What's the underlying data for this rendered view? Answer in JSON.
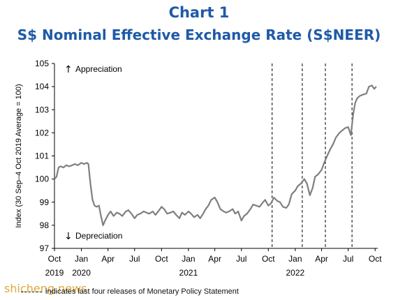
{
  "header": {
    "chart_number": "Chart 1",
    "title": "S$ Nominal Effective Exchange Rate (S$NEER)"
  },
  "footer": {
    "legend_note": "indicates last four releases of Monetary Policy Statement",
    "watermark": "shicheng.news"
  },
  "colors": {
    "title": "#1f5aa6",
    "series": "#7f7f7f",
    "axis": "#000000",
    "watermark": "#d9a12a"
  },
  "chart_data": {
    "type": "line",
    "title": "S$ Nominal Effective Exchange Rate (S$NEER)",
    "ylabel": "Index (30 Sep–4 Oct 2019 Average = 100)",
    "xlabel": "",
    "ylim": [
      97,
      105
    ],
    "yticks": [
      97,
      98,
      99,
      100,
      101,
      102,
      103,
      104,
      105
    ],
    "xlim": [
      "2019-10-01",
      "2022-10-10"
    ],
    "xticks": [
      {
        "date": "2019-10-01",
        "label": "Oct",
        "year": "2019"
      },
      {
        "date": "2020-01-01",
        "label": "Jan",
        "year": "2020"
      },
      {
        "date": "2020-04-01",
        "label": "Apr",
        "year": ""
      },
      {
        "date": "2020-07-01",
        "label": "Jul",
        "year": ""
      },
      {
        "date": "2020-10-01",
        "label": "Oct",
        "year": ""
      },
      {
        "date": "2021-01-01",
        "label": "Jan",
        "year": "2021"
      },
      {
        "date": "2021-04-01",
        "label": "Apr",
        "year": ""
      },
      {
        "date": "2021-07-01",
        "label": "Jul",
        "year": ""
      },
      {
        "date": "2021-10-01",
        "label": "Oct",
        "year": ""
      },
      {
        "date": "2022-01-01",
        "label": "Jan",
        "year": "2022"
      },
      {
        "date": "2022-04-01",
        "label": "Apr",
        "year": ""
      },
      {
        "date": "2022-07-01",
        "label": "Jul",
        "year": ""
      },
      {
        "date": "2022-10-01",
        "label": "Oct",
        "year": ""
      }
    ],
    "annotations": [
      {
        "text": "Appreciation",
        "arrow": "up"
      },
      {
        "text": "Depreciation",
        "arrow": "down"
      }
    ],
    "mps_release_dates": [
      "2021-10-14",
      "2022-01-25",
      "2022-04-14",
      "2022-07-14"
    ],
    "grid": false,
    "series": [
      {
        "points": [
          [
            "2019-10-01",
            100.0
          ],
          [
            "2019-10-08",
            100.1
          ],
          [
            "2019-10-15",
            100.5
          ],
          [
            "2019-10-22",
            100.55
          ],
          [
            "2019-11-01",
            100.5
          ],
          [
            "2019-11-10",
            100.6
          ],
          [
            "2019-11-20",
            100.55
          ],
          [
            "2019-12-01",
            100.6
          ],
          [
            "2019-12-10",
            100.65
          ],
          [
            "2019-12-20",
            100.6
          ],
          [
            "2020-01-01",
            100.7
          ],
          [
            "2020-01-10",
            100.65
          ],
          [
            "2020-01-20",
            100.7
          ],
          [
            "2020-01-25",
            100.65
          ],
          [
            "2020-02-01",
            99.8
          ],
          [
            "2020-02-08",
            99.1
          ],
          [
            "2020-02-15",
            98.85
          ],
          [
            "2020-02-22",
            98.8
          ],
          [
            "2020-03-01",
            98.85
          ],
          [
            "2020-03-08",
            98.4
          ],
          [
            "2020-03-15",
            98.0
          ],
          [
            "2020-03-22",
            98.2
          ],
          [
            "2020-04-01",
            98.45
          ],
          [
            "2020-04-10",
            98.6
          ],
          [
            "2020-04-20",
            98.4
          ],
          [
            "2020-05-01",
            98.55
          ],
          [
            "2020-05-10",
            98.5
          ],
          [
            "2020-05-20",
            98.4
          ],
          [
            "2020-06-01",
            98.6
          ],
          [
            "2020-06-10",
            98.65
          ],
          [
            "2020-06-20",
            98.5
          ],
          [
            "2020-07-01",
            98.3
          ],
          [
            "2020-07-10",
            98.45
          ],
          [
            "2020-07-20",
            98.5
          ],
          [
            "2020-08-01",
            98.6
          ],
          [
            "2020-08-10",
            98.55
          ],
          [
            "2020-08-20",
            98.5
          ],
          [
            "2020-09-01",
            98.6
          ],
          [
            "2020-09-10",
            98.45
          ],
          [
            "2020-09-20",
            98.6
          ],
          [
            "2020-10-01",
            98.8
          ],
          [
            "2020-10-10",
            98.7
          ],
          [
            "2020-10-20",
            98.5
          ],
          [
            "2020-11-01",
            98.55
          ],
          [
            "2020-11-10",
            98.6
          ],
          [
            "2020-11-20",
            98.45
          ],
          [
            "2020-12-01",
            98.3
          ],
          [
            "2020-12-10",
            98.55
          ],
          [
            "2020-12-20",
            98.45
          ],
          [
            "2021-01-01",
            98.6
          ],
          [
            "2021-01-10",
            98.5
          ],
          [
            "2021-01-20",
            98.35
          ],
          [
            "2021-02-01",
            98.45
          ],
          [
            "2021-02-10",
            98.3
          ],
          [
            "2021-02-20",
            98.5
          ],
          [
            "2021-03-01",
            98.7
          ],
          [
            "2021-03-10",
            98.85
          ],
          [
            "2021-03-20",
            99.1
          ],
          [
            "2021-04-01",
            99.2
          ],
          [
            "2021-04-10",
            99.0
          ],
          [
            "2021-04-20",
            98.7
          ],
          [
            "2021-05-01",
            98.6
          ],
          [
            "2021-05-10",
            98.55
          ],
          [
            "2021-05-20",
            98.6
          ],
          [
            "2021-06-01",
            98.7
          ],
          [
            "2021-06-10",
            98.5
          ],
          [
            "2021-06-20",
            98.6
          ],
          [
            "2021-07-01",
            98.2
          ],
          [
            "2021-07-10",
            98.4
          ],
          [
            "2021-07-20",
            98.5
          ],
          [
            "2021-08-01",
            98.7
          ],
          [
            "2021-08-10",
            98.9
          ],
          [
            "2021-08-20",
            98.85
          ],
          [
            "2021-09-01",
            98.8
          ],
          [
            "2021-09-10",
            98.95
          ],
          [
            "2021-09-20",
            99.1
          ],
          [
            "2021-10-01",
            98.85
          ],
          [
            "2021-10-10",
            98.95
          ],
          [
            "2021-10-20",
            99.2
          ],
          [
            "2021-11-01",
            99.05
          ],
          [
            "2021-11-10",
            99.0
          ],
          [
            "2021-11-20",
            98.8
          ],
          [
            "2021-12-01",
            98.75
          ],
          [
            "2021-12-10",
            98.9
          ],
          [
            "2021-12-20",
            99.35
          ],
          [
            "2022-01-01",
            99.5
          ],
          [
            "2022-01-10",
            99.7
          ],
          [
            "2022-01-20",
            99.8
          ],
          [
            "2022-02-01",
            100.0
          ],
          [
            "2022-02-10",
            99.8
          ],
          [
            "2022-02-20",
            99.3
          ],
          [
            "2022-03-01",
            99.6
          ],
          [
            "2022-03-10",
            100.1
          ],
          [
            "2022-03-20",
            100.2
          ],
          [
            "2022-04-01",
            100.4
          ],
          [
            "2022-04-10",
            100.7
          ],
          [
            "2022-04-20",
            101.0
          ],
          [
            "2022-05-01",
            101.3
          ],
          [
            "2022-05-10",
            101.5
          ],
          [
            "2022-05-20",
            101.8
          ],
          [
            "2022-06-01",
            102.0
          ],
          [
            "2022-06-10",
            102.1
          ],
          [
            "2022-06-20",
            102.2
          ],
          [
            "2022-07-01",
            102.25
          ],
          [
            "2022-07-10",
            101.9
          ],
          [
            "2022-07-18",
            102.8
          ],
          [
            "2022-07-25",
            103.3
          ],
          [
            "2022-08-01",
            103.5
          ],
          [
            "2022-08-10",
            103.6
          ],
          [
            "2022-08-20",
            103.65
          ],
          [
            "2022-09-01",
            103.7
          ],
          [
            "2022-09-10",
            104.0
          ],
          [
            "2022-09-20",
            104.05
          ],
          [
            "2022-09-28",
            103.9
          ],
          [
            "2022-10-05",
            104.0
          ]
        ]
      }
    ]
  }
}
